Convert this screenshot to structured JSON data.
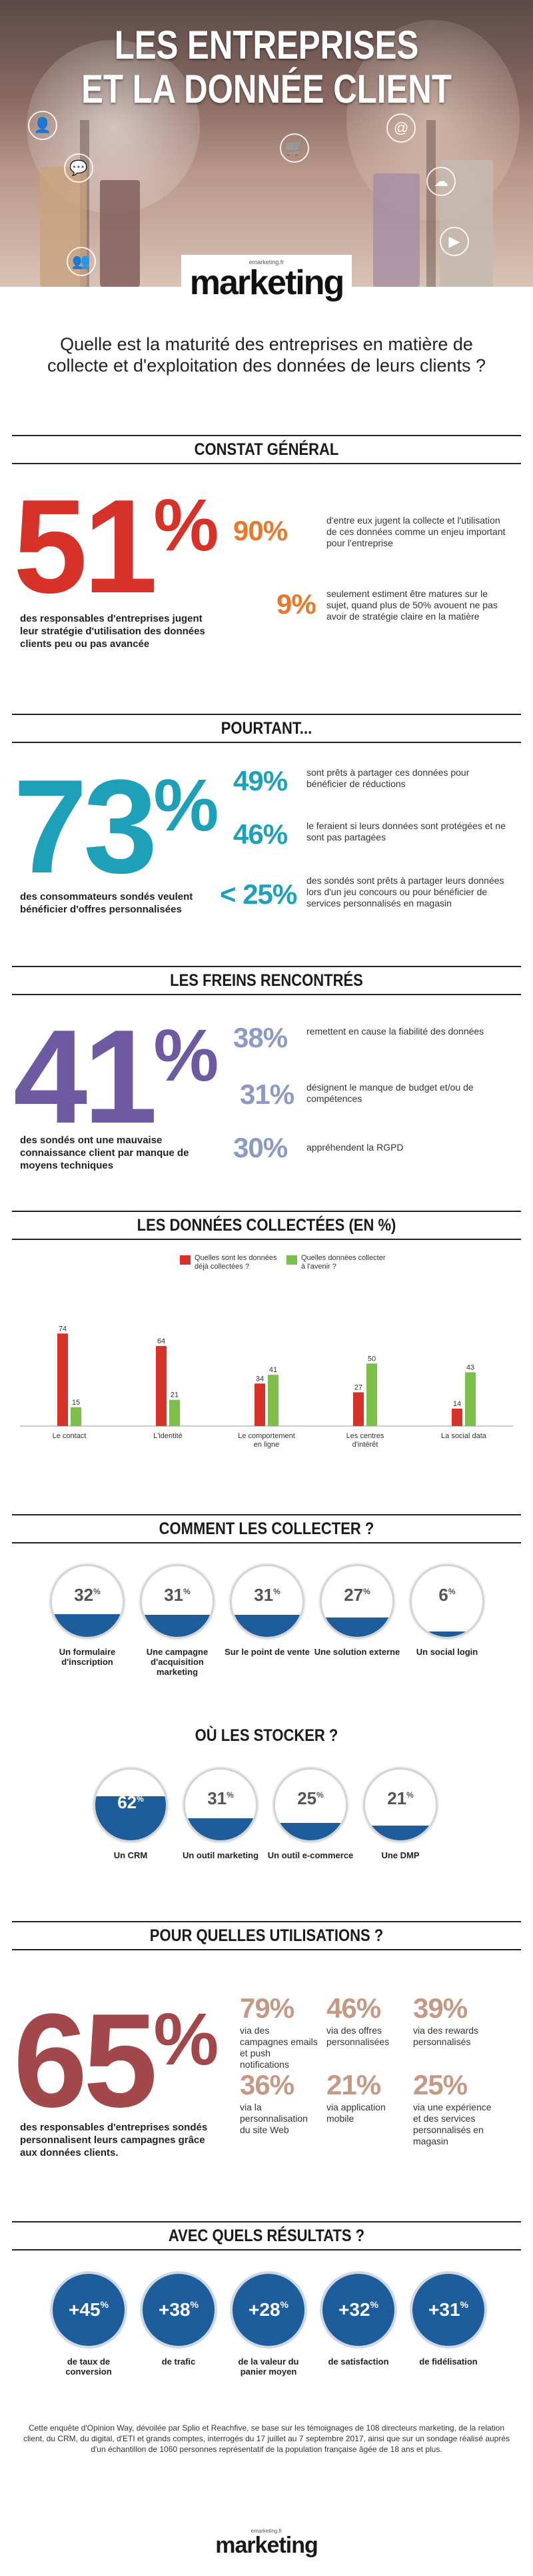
{
  "hero": {
    "title_line1": "LES ENTREPRISES",
    "title_line2": "ET LA DONNÉE CLIENT",
    "icons": [
      "user-icon",
      "cart-icon",
      "at-icon",
      "cloud-icon",
      "group-icon",
      "chat-icon",
      "play-icon"
    ]
  },
  "logo": {
    "small": "emarketing.fr",
    "main": "marketing"
  },
  "intro": "Quelle est la maturité des entreprises en matière de collecte et d'exploitation des données de leurs clients ?",
  "constat": {
    "heading": "CONSTAT GÉNÉRAL",
    "big": "51",
    "pct": "%",
    "caption": "des responsables d'entreprises jugent leur stratégie d'utilisation des données clients peu ou pas avancée",
    "stats": [
      {
        "value": "90%",
        "text": "d'entre eux jugent la collecte et l'utilisation de ces données comme un enjeu important pour l'entreprise"
      },
      {
        "value": "9%",
        "text": "seulement estiment être matures sur le sujet, quand plus de 50% avouent ne pas avoir de stratégie claire en la matière"
      }
    ]
  },
  "pourtant": {
    "heading": "POURTANT...",
    "big": "73",
    "pct": "%",
    "caption": "des consommateurs sondés veulent bénéficier d'offres personnalisées",
    "stats": [
      {
        "value": "49%",
        "text": "sont prêts à partager ces données pour bénéficier de réductions"
      },
      {
        "value": "46%",
        "text": "le feraient si leurs données sont protégées et ne sont pas partagées"
      },
      {
        "value": "< 25%",
        "text": "des sondés sont prêts à partager leurs données lors d'un jeu concours ou pour bénéficier de services personnalisés en magasin"
      }
    ]
  },
  "freins": {
    "heading": "LES FREINS RENCONTRÉS",
    "big": "41",
    "pct": "%",
    "caption": "des sondés ont une mauvaise connaissance client par manque de moyens techniques",
    "stats": [
      {
        "value": "38%",
        "text": "remettent en cause la fiabilité des données"
      },
      {
        "value": "31%",
        "text": "désignent le manque de budget et/ou de compétences"
      },
      {
        "value": "30%",
        "text": "appréhendent la RGPD"
      }
    ]
  },
  "collectees": {
    "heading": "LES DONNÉES COLLECTÉES (EN %)"
  },
  "chart_data": {
    "type": "bar",
    "categories": [
      "Le contact",
      "L'identité",
      "Le comportement en ligne",
      "Les centres d'intérêt",
      "La social data"
    ],
    "series": [
      {
        "name": "Quelles sont les données déjà collectées ?",
        "color": "#d7322a",
        "values": [
          74,
          64,
          34,
          27,
          14
        ]
      },
      {
        "name": "Quelles données collecter à l'avenir ?",
        "color": "#7cc04b",
        "values": [
          15,
          21,
          41,
          50,
          43
        ]
      }
    ],
    "ylim": [
      0,
      80
    ],
    "grid": false,
    "legend": "top-center"
  },
  "collecter": {
    "heading": "COMMENT LES COLLECTER ?",
    "items": [
      {
        "value": "32",
        "fraction": 0.32,
        "label": "Un formulaire d'inscription"
      },
      {
        "value": "31",
        "fraction": 0.31,
        "label": "Une campagne d'acquisition marketing"
      },
      {
        "value": "31",
        "fraction": 0.31,
        "label": "Sur le point de vente"
      },
      {
        "value": "27",
        "fraction": 0.27,
        "label": "Une solution externe"
      },
      {
        "value": "6",
        "fraction": 0.06,
        "label": "Un social login"
      }
    ]
  },
  "stocker": {
    "heading": "OÙ LES STOCKER ?",
    "items": [
      {
        "value": "62",
        "fraction": 0.62,
        "label": "Un CRM"
      },
      {
        "value": "31",
        "fraction": 0.31,
        "label": "Un outil marketing"
      },
      {
        "value": "25",
        "fraction": 0.25,
        "label": "Un outil e-commerce"
      },
      {
        "value": "21",
        "fraction": 0.21,
        "label": "Une DMP"
      }
    ]
  },
  "utilisations": {
    "heading": "POUR QUELLES UTILISATIONS ?",
    "big": "65",
    "pct": "%",
    "caption": "des responsables d'entreprises sondés personnalisent leurs campagnes grâce aux données clients.",
    "stats": [
      {
        "value": "79%",
        "text": "via des campagnes emails et push notifications"
      },
      {
        "value": "46%",
        "text": "via des offres personnalisées"
      },
      {
        "value": "39%",
        "text": "via des rewards personnalisés"
      },
      {
        "value": "36%",
        "text": "via la personnalisation du site Web"
      },
      {
        "value": "21%",
        "text": "via application mobile"
      },
      {
        "value": "25%",
        "text": "via une expérience et des services personnalisés en magasin"
      }
    ]
  },
  "resultats": {
    "heading": "AVEC QUELS RÉSULTATS ?",
    "items": [
      {
        "value": "+45",
        "label": "de taux de conversion"
      },
      {
        "value": "+38",
        "label": "de trafic"
      },
      {
        "value": "+28",
        "label": "de la valeur du panier moyen"
      },
      {
        "value": "+32",
        "label": "de satisfaction"
      },
      {
        "value": "+31",
        "label": "de fidélisation"
      }
    ]
  },
  "footnote": "Cette enquête d'Opinion Way, dévoilée par Splio et Reachfive, se base sur les témoignages de 108 directeurs marketing, de la relation client, du CRM, du digital, d'ETI et grands comptes, interrogés du 17 juillet au 7 septembre 2017, ainsi que sur un sondage réalisé auprès d'un échantillon de 1060 personnes représentatif de la population française âgée de 18 ans et plus.",
  "colors": {
    "orange": "#e8782c",
    "red": "#d7322a",
    "teal": "#1ea0b8",
    "purple": "#6e5aa0",
    "maroon": "#a3484a",
    "blue": "#1e5d9c",
    "green": "#7cc04b"
  }
}
